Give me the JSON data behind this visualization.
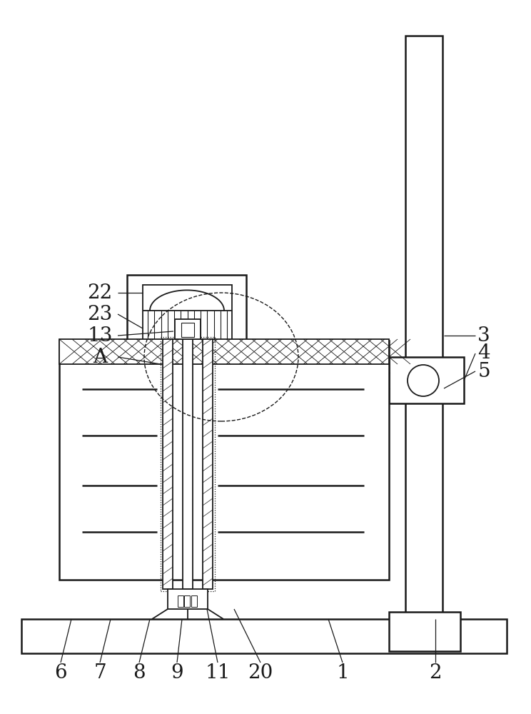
{
  "bg_color": "#ffffff",
  "line_color": "#1a1a1a",
  "figsize": [
    7.44,
    10.0
  ],
  "dpi": 100,
  "lw": 1.3,
  "lw_thick": 1.8
}
